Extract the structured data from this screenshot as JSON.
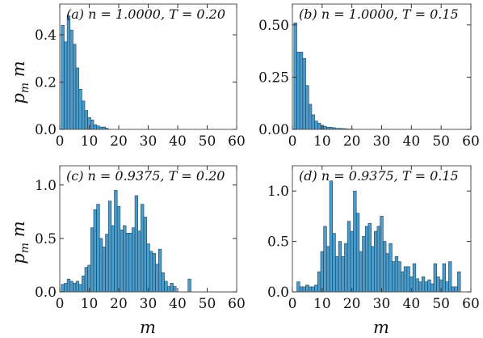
{
  "figure": {
    "ylabel": "p_m m",
    "xlabel": "m",
    "bar_color": "#4a9dcb"
  },
  "chart_data": [
    {
      "type": "bar",
      "panel_label": "(a) n = 1.0000,  T = 0.20",
      "xlim": [
        0,
        60
      ],
      "ylim": [
        0,
        0.53
      ],
      "xticks": [
        "0",
        "10",
        "20",
        "30",
        "40",
        "50",
        "60"
      ],
      "yticks": [
        {
          "value": 0.0,
          "label": "0.0"
        },
        {
          "value": 0.2,
          "label": "0.2"
        },
        {
          "value": 0.4,
          "label": "0.4"
        }
      ],
      "bin_start": 0.5,
      "bin_width": 1,
      "values": [
        0.44,
        0.37,
        0.48,
        0.42,
        0.36,
        0.26,
        0.17,
        0.12,
        0.08,
        0.05,
        0.04,
        0.02,
        0.015,
        0.01,
        0.01,
        0.005
      ]
    },
    {
      "type": "bar",
      "panel_label": "(b) n = 1.0000,  T = 0.15",
      "xlim": [
        0,
        60
      ],
      "ylim": [
        0,
        0.6
      ],
      "xticks": [
        "0",
        "10",
        "20",
        "30",
        "40",
        "50",
        "60"
      ],
      "yticks": [
        {
          "value": 0.0,
          "label": "0.00"
        },
        {
          "value": 0.25,
          "label": "0.25"
        },
        {
          "value": 0.5,
          "label": "0.50"
        }
      ],
      "bin_start": 0.5,
      "bin_width": 1,
      "values": [
        0.51,
        0.37,
        0.37,
        0.34,
        0.21,
        0.12,
        0.07,
        0.04,
        0.03,
        0.02,
        0.015,
        0.01,
        0.01,
        0.008,
        0.005,
        0.005,
        0.004,
        0.003,
        0.002,
        0.002
      ]
    },
    {
      "type": "bar",
      "panel_label": "(c) n = 0.9375,  T = 0.20",
      "xlim": [
        0,
        60
      ],
      "ylim": [
        0,
        1.18
      ],
      "xticks": [
        "0",
        "10",
        "20",
        "30",
        "40",
        "50",
        "60"
      ],
      "yticks": [
        {
          "value": 0.0,
          "label": "0.0"
        },
        {
          "value": 0.5,
          "label": "0.5"
        },
        {
          "value": 1.0,
          "label": "1.0"
        }
      ],
      "bin_start": 0.5,
      "bin_width": 1,
      "values": [
        0.07,
        0.08,
        0.12,
        0.1,
        0.08,
        0.1,
        0.07,
        0.15,
        0.23,
        0.25,
        0.6,
        0.77,
        0.82,
        0.5,
        0.42,
        0.54,
        0.85,
        0.62,
        0.95,
        0.8,
        0.58,
        0.62,
        0.55,
        0.55,
        0.6,
        0.9,
        0.57,
        0.82,
        0.7,
        0.45,
        0.38,
        0.36,
        0.26,
        0.4,
        0.18,
        0.1,
        0.05,
        0.08,
        0.05,
        0,
        0,
        0,
        0,
        0.12
      ]
    },
    {
      "type": "bar",
      "panel_label": "(d) n = 0.9375,  T = 0.15",
      "xlim": [
        0,
        60
      ],
      "ylim": [
        0,
        1.25
      ],
      "xticks": [
        "0",
        "10",
        "20",
        "30",
        "40",
        "50",
        "60"
      ],
      "yticks": [
        {
          "value": 0.0,
          "label": "0.0"
        },
        {
          "value": 0.5,
          "label": "0.5"
        },
        {
          "value": 1.0,
          "label": "1.0"
        }
      ],
      "bin_start": 0.5,
      "bin_width": 1,
      "values": [
        0.0,
        0.1,
        0.05,
        0.05,
        0.07,
        0.05,
        0.05,
        0.07,
        0.2,
        0.4,
        0.65,
        0.45,
        1.1,
        0.58,
        0.35,
        0.5,
        0.35,
        0.48,
        0.7,
        0.6,
        1.0,
        0.78,
        0.4,
        0.55,
        0.65,
        0.68,
        0.45,
        0.6,
        0.65,
        0.75,
        0.5,
        0.38,
        0.48,
        0.3,
        0.35,
        0.3,
        0.2,
        0.25,
        0.25,
        0.15,
        0.28,
        0.13,
        0.1,
        0.15,
        0.1,
        0.12,
        0.08,
        0.28,
        0.15,
        0.12,
        0.28,
        0.1,
        0.3,
        0.05,
        0.05,
        0.2
      ]
    }
  ]
}
